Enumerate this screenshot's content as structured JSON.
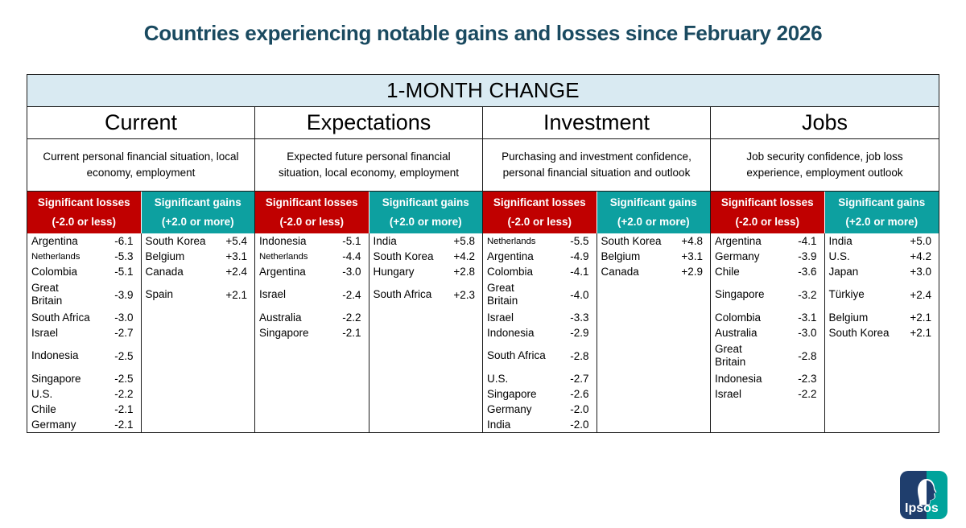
{
  "title": "Countries experiencing notable gains and losses since February 2026",
  "colors": {
    "title_navy": "#1A4A60",
    "banner_blue": "#D9EAF2",
    "loss_red": "#C00000",
    "gain_teal": "#0DA0A0",
    "logo_navy": "#1F3E6D",
    "logo_teal": "#00A39B"
  },
  "chart_data": {
    "type": "table",
    "title": "Countries experiencing notable gains and losses since February 2026",
    "banner": "1-MONTH CHANGE",
    "loss_header": {
      "label": "Significant losses",
      "threshold": "(-2.0 or less)"
    },
    "gain_header": {
      "label": "Significant gains",
      "threshold": "(+2.0 or more)"
    },
    "groups": [
      {
        "name": "Current",
        "subtitle": "Current personal financial situation, local economy, employment",
        "losses": [
          {
            "country": "Argentina",
            "value": "-6.1"
          },
          {
            "country": "Netherlands",
            "value": "-5.3",
            "condensed": true
          },
          {
            "country": "Colombia",
            "value": "-5.1"
          },
          {
            "country": "Great Britain",
            "value": "-3.9",
            "wrap": true
          },
          {
            "country": "South Africa",
            "value": "-3.0"
          },
          {
            "country": "Israel",
            "value": "-2.7"
          },
          {
            "country": "Indonesia",
            "value": "-2.5"
          },
          {
            "country": "Singapore",
            "value": "-2.5"
          },
          {
            "country": "U.S.",
            "value": "-2.2"
          },
          {
            "country": "Chile",
            "value": "-2.1"
          },
          {
            "country": "Germany",
            "value": "-2.1"
          }
        ],
        "gains": [
          {
            "country": "South Korea",
            "value": "+5.4"
          },
          {
            "country": "Belgium",
            "value": "+3.1"
          },
          {
            "country": "Canada",
            "value": "+2.4"
          },
          {
            "country": "Spain",
            "value": "+2.1"
          }
        ]
      },
      {
        "name": "Expectations",
        "subtitle": "Expected future personal financial situation, local economy, employment",
        "losses": [
          {
            "country": "Indonesia",
            "value": "-5.1"
          },
          {
            "country": "Netherlands",
            "value": "-4.4",
            "condensed": true
          },
          {
            "country": "Argentina",
            "value": "-3.0"
          },
          {
            "country": "Israel",
            "value": "-2.4"
          },
          {
            "country": "Australia",
            "value": "-2.2"
          },
          {
            "country": "Singapore",
            "value": "-2.1"
          }
        ],
        "gains": [
          {
            "country": "India",
            "value": "+5.8"
          },
          {
            "country": "South Korea",
            "value": "+4.2"
          },
          {
            "country": "Hungary",
            "value": "+2.8"
          },
          {
            "country": "South Africa",
            "value": "+2.3"
          }
        ]
      },
      {
        "name": "Investment",
        "subtitle": "Purchasing and investment confidence, personal financial situation and outlook",
        "losses": [
          {
            "country": "Netherlands",
            "value": "-5.5",
            "condensed": true
          },
          {
            "country": "Argentina",
            "value": "-4.9"
          },
          {
            "country": "Colombia",
            "value": "-4.1"
          },
          {
            "country": "Great Britain",
            "value": "-4.0",
            "wrap": true
          },
          {
            "country": "Israel",
            "value": "-3.3"
          },
          {
            "country": "Indonesia",
            "value": "-2.9"
          },
          {
            "country": "South Africa",
            "value": "-2.8"
          },
          {
            "country": "U.S.",
            "value": "-2.7"
          },
          {
            "country": "Singapore",
            "value": "-2.6"
          },
          {
            "country": "Germany",
            "value": "-2.0"
          },
          {
            "country": "India",
            "value": "-2.0"
          }
        ],
        "gains": [
          {
            "country": "South Korea",
            "value": "+4.8"
          },
          {
            "country": "Belgium",
            "value": "+3.1"
          },
          {
            "country": "Canada",
            "value": "+2.9"
          }
        ]
      },
      {
        "name": "Jobs",
        "subtitle": "Job security confidence, job loss experience, employment outlook",
        "losses": [
          {
            "country": "Argentina",
            "value": "-4.1"
          },
          {
            "country": "Germany",
            "value": "-3.9"
          },
          {
            "country": "Chile",
            "value": "-3.6"
          },
          {
            "country": "Singapore",
            "value": "-3.2"
          },
          {
            "country": "Colombia",
            "value": "-3.1"
          },
          {
            "country": "Australia",
            "value": "-3.0"
          },
          {
            "country": "Great Britain",
            "value": "-2.8",
            "wrap": true
          },
          {
            "country": "Indonesia",
            "value": "-2.3"
          },
          {
            "country": "Israel",
            "value": "-2.2"
          }
        ],
        "gains": [
          {
            "country": "India",
            "value": "+5.0"
          },
          {
            "country": "U.S.",
            "value": "+4.2"
          },
          {
            "country": "Japan",
            "value": "+3.0"
          },
          {
            "country": "Türkiye",
            "value": "+2.4"
          },
          {
            "country": "Belgium",
            "value": "+2.1"
          },
          {
            "country": "South Korea",
            "value": "+2.1"
          }
        ]
      }
    ]
  },
  "logo": {
    "text": "Ipsos"
  }
}
